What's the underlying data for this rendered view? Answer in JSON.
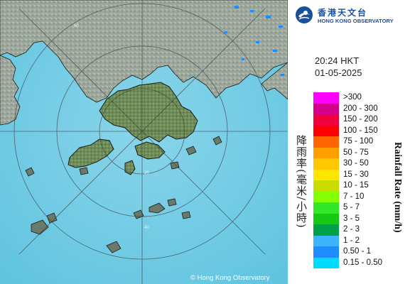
{
  "header": {
    "logo_zh": "香港天文台",
    "logo_en": "HONG KONG OBSERVATORY"
  },
  "timestamp": {
    "time": "20:24 HKT",
    "date": "01-05-2025"
  },
  "legend": {
    "title_zh": "降雨率(毫米/小時)",
    "title_en": "Rainfall Rate (mm/h)",
    "items": [
      {
        "label": ">300",
        "color": "#ff00ff"
      },
      {
        "label": "200 - 300",
        "color": "#d2008c"
      },
      {
        "label": "150 - 200",
        "color": "#f0003c"
      },
      {
        "label": "100 - 150",
        "color": "#ff0000"
      },
      {
        "label": "75 - 100",
        "color": "#ff6400"
      },
      {
        "label": "50 - 75",
        "color": "#ffa000"
      },
      {
        "label": "30 - 50",
        "color": "#ffc800"
      },
      {
        "label": "15 - 30",
        "color": "#ffe600"
      },
      {
        "label": "10 - 15",
        "color": "#c8dc00"
      },
      {
        "label": "7 - 10",
        "color": "#82ff00"
      },
      {
        "label": "5 - 7",
        "color": "#32e628"
      },
      {
        "label": "3 - 5",
        "color": "#14c814"
      },
      {
        "label": "2 - 3",
        "color": "#00a046"
      },
      {
        "label": "1 - 2",
        "color": "#3cb4ff"
      },
      {
        "label": "0.50 - 1",
        "color": "#1e8cff"
      },
      {
        "label": "0.15 - 0.50",
        "color": "#00dcff"
      }
    ]
  },
  "map": {
    "range_rings_km": [
      "20",
      "40",
      "60"
    ],
    "copyright": "© Hong Kong Observatory",
    "colors": {
      "sea": "#7fcde6",
      "land": "#8c9a8a",
      "hk_green": "#6a8a55",
      "coast": "#1a1a1a"
    }
  }
}
